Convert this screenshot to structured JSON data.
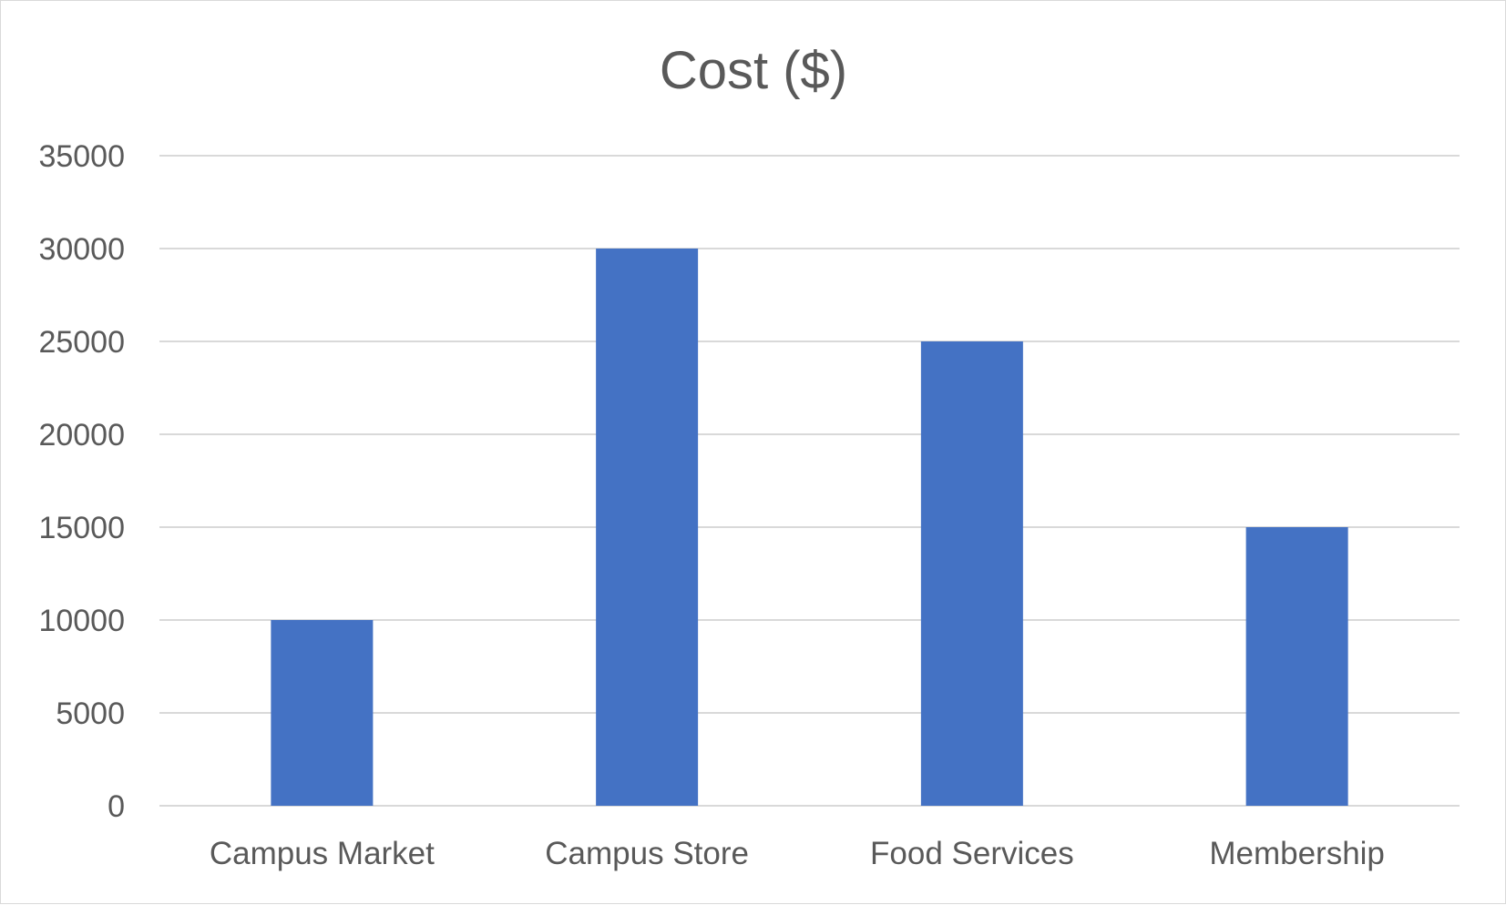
{
  "chart_data": {
    "type": "bar",
    "title": "Cost ($)",
    "xlabel": "",
    "ylabel": "",
    "categories": [
      "Campus Market",
      "Campus Store",
      "Food Services",
      "Membership"
    ],
    "values": [
      10000,
      30000,
      25000,
      15000
    ],
    "ylim": [
      0,
      35000
    ],
    "yticks": [
      0,
      5000,
      10000,
      15000,
      20000,
      25000,
      30000,
      35000
    ],
    "ytick_labels": [
      "0",
      "5000",
      "10000",
      "15000",
      "20000",
      "25000",
      "30000",
      "35000"
    ],
    "grid": true,
    "legend": "none",
    "bar_color": "#4472C4",
    "grid_color": "#D9D9D9",
    "text_color": "#595959"
  }
}
